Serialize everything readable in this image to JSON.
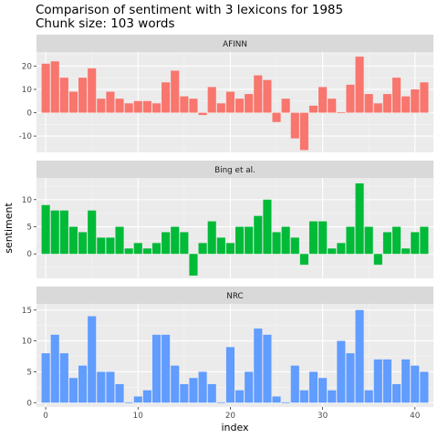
{
  "chart_data": {
    "type": "bar",
    "title": "Comparison of sentiment with 3 lexicons for 1985",
    "subtitle": "Chunk size: 103 words",
    "xlabel": "index",
    "ylabel": "sentiment",
    "xlim": [
      -1,
      42
    ],
    "x_ticks": [
      0,
      10,
      20,
      30,
      40
    ],
    "grid": true,
    "legend": "none",
    "panels": [
      {
        "name": "AFINN",
        "color": "#F8766D",
        "ylim": [
          -17,
          26
        ],
        "y_ticks": [
          -10,
          0,
          10,
          20
        ],
        "x": [
          0,
          1,
          2,
          3,
          4,
          5,
          6,
          7,
          8,
          9,
          10,
          11,
          12,
          13,
          14,
          15,
          16,
          17,
          18,
          19,
          20,
          21,
          22,
          23,
          24,
          25,
          26,
          27,
          28,
          29,
          30,
          31,
          32,
          33,
          34,
          35,
          36,
          37,
          38,
          39,
          40,
          41
        ],
        "values": [
          21,
          22,
          15,
          9,
          15,
          19,
          6,
          9,
          6,
          4,
          5,
          5,
          4,
          13,
          18,
          7,
          6,
          -1,
          11,
          4,
          9,
          6,
          8,
          16,
          14,
          -4,
          6,
          -11,
          -16,
          3,
          11,
          6,
          0,
          12,
          24,
          8,
          4,
          8,
          15,
          7,
          10,
          13
        ]
      },
      {
        "name": "Bing et al.",
        "color": "#00BA38",
        "ylim": [
          -4.5,
          14
        ],
        "y_ticks": [
          0,
          5,
          10
        ],
        "x": [
          0,
          1,
          2,
          3,
          4,
          5,
          6,
          7,
          8,
          9,
          10,
          11,
          12,
          13,
          14,
          15,
          16,
          17,
          18,
          19,
          20,
          21,
          22,
          23,
          24,
          25,
          26,
          27,
          28,
          29,
          30,
          31,
          32,
          33,
          34,
          35,
          36,
          37,
          38,
          39,
          40,
          41
        ],
        "values": [
          9,
          8,
          8,
          5,
          4,
          8,
          3,
          3,
          5,
          1,
          2,
          1,
          2,
          4,
          5,
          4,
          -4,
          2,
          6,
          3,
          2,
          5,
          5,
          7,
          10,
          4,
          5,
          3,
          -2,
          6,
          6,
          1,
          2,
          5,
          13,
          5,
          -2,
          4,
          5,
          1,
          4,
          5
        ]
      },
      {
        "name": "NRC",
        "color": "#619CFF",
        "ylim": [
          -0.7,
          16
        ],
        "y_ticks": [
          0,
          5,
          10,
          15
        ],
        "x": [
          0,
          1,
          2,
          3,
          4,
          5,
          6,
          7,
          8,
          9,
          10,
          11,
          12,
          13,
          14,
          15,
          16,
          17,
          18,
          19,
          20,
          21,
          22,
          23,
          24,
          25,
          26,
          27,
          28,
          29,
          30,
          31,
          32,
          33,
          34,
          35,
          36,
          37,
          38,
          39,
          40,
          41
        ],
        "values": [
          8,
          11,
          8,
          4,
          6,
          14,
          5,
          5,
          3,
          0,
          1,
          2,
          11,
          11,
          6,
          3,
          4,
          5,
          3,
          0,
          9,
          2,
          5,
          12,
          11,
          1,
          0,
          6,
          2,
          5,
          4,
          2,
          10,
          8,
          15,
          2,
          7,
          7,
          3,
          7,
          6,
          5
        ]
      }
    ]
  }
}
